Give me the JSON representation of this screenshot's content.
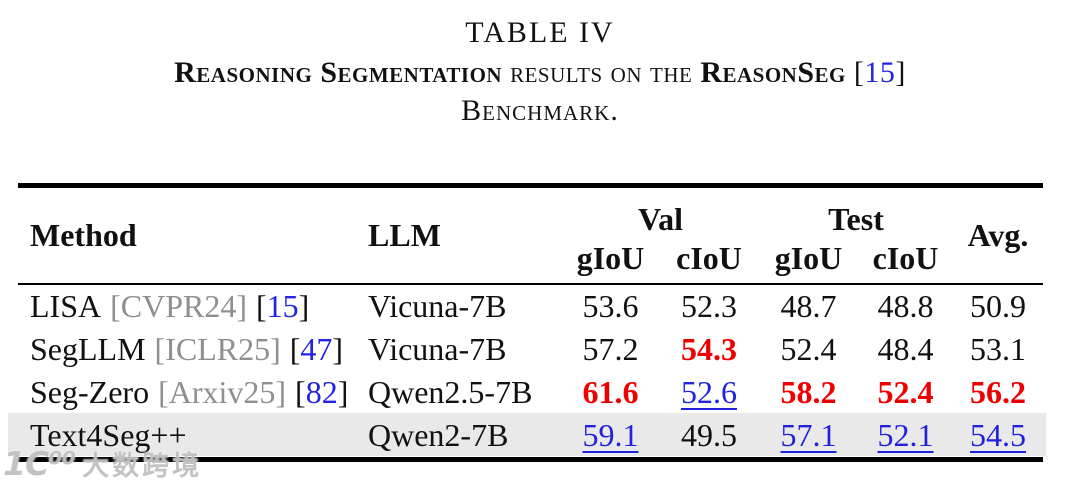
{
  "title": {
    "line1": "TABLE IV",
    "line2": {
      "seg1": "Reasoning Segmentation",
      "seg2": " results on the ",
      "seg3": "ReasonSeg",
      "ref": "15"
    },
    "line3": "Benchmark."
  },
  "glyphs": {
    "lbracket": "[",
    "rbracket": "]",
    "space": " "
  },
  "table": {
    "header": {
      "method": "Method",
      "llm": "LLM",
      "val_group": "Val",
      "test_group": "Test",
      "avg": "Avg.",
      "sub": [
        "gIoU",
        "cIoU",
        "gIoU",
        "cIoU"
      ]
    },
    "rows": [
      {
        "method": "LISA",
        "venue": "[CVPR24]",
        "ref": "15",
        "llm": "Vicuna-7B",
        "val_giou": "53.6",
        "val_ciou": "52.3",
        "test_giou": "48.7",
        "test_ciou": "48.8",
        "avg": "50.9"
      },
      {
        "method": "SegLLM",
        "venue": "[ICLR25]",
        "ref": "47",
        "llm": "Vicuna-7B",
        "val_giou": "57.2",
        "val_ciou": "54.3",
        "test_giou": "52.4",
        "test_ciou": "48.4",
        "avg": "53.1"
      },
      {
        "method": "Seg-Zero",
        "venue": "[Arxiv25]",
        "ref": "82",
        "llm": "Qwen2.5-7B",
        "val_giou": "61.6",
        "val_ciou": "52.6",
        "test_giou": "58.2",
        "test_ciou": "52.4",
        "avg": "56.2"
      },
      {
        "method": "Text4Seg++",
        "llm": "Qwen2-7B",
        "val_giou": "59.1",
        "val_ciou": "49.5",
        "test_giou": "57.1",
        "test_ciou": "52.1",
        "avg": "54.5"
      }
    ]
  },
  "watermark": {
    "icon": "1C⁰⁰",
    "text": "大数跨境"
  },
  "colors": {
    "best_red": "#ee0000",
    "second_blue": "#2222dd",
    "ref_blue": "#2323e6",
    "venue_gray": "#8f8f8f",
    "highlight_row": "#e9e9e9"
  }
}
